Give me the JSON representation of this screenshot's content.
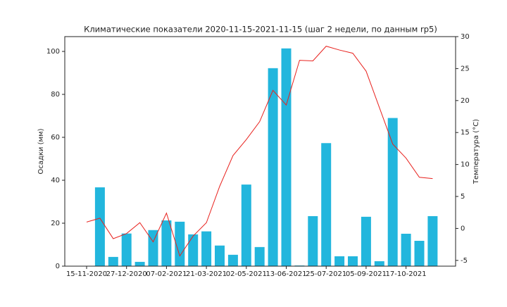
{
  "chart_data": {
    "type": "bar",
    "title": "Климатические показатели 2020-11-15-2021-11-15 (шаг 2 недели, по данным rp5)",
    "ylabel": "Осадки (мм)",
    "y2label": "Температура (°C)",
    "categories": [
      "15-11-2020",
      null,
      null,
      "27-12-2020",
      null,
      null,
      "07-02-2021",
      null,
      null,
      "21-03-2021",
      null,
      null,
      "02-05-2021",
      null,
      null,
      "13-06-2021",
      null,
      null,
      "25-07-2021",
      null,
      null,
      "05-09-2021",
      null,
      null,
      "17-10-2021",
      null,
      null
    ],
    "series": [
      {
        "type": "bar",
        "color": "#22b6dd",
        "values": [
          0,
          36.7,
          4.3,
          15.2,
          2.0,
          16.8,
          21.3,
          20.7,
          14.8,
          16.2,
          9.6,
          5.3,
          38.0,
          8.9,
          92.2,
          101.4,
          0.3,
          23.3,
          57.3,
          4.6,
          4.6,
          23.0,
          2.3,
          69.0,
          15.1,
          11.8,
          23.3
        ]
      },
      {
        "type": "line",
        "axis": "y2",
        "color": "#e8211d",
        "values": [
          1.0,
          1.6,
          -1.6,
          -0.8,
          0.9,
          -2.1,
          2.4,
          -4.3,
          -1.2,
          0.9,
          6.6,
          11.4,
          13.9,
          16.7,
          21.6,
          19.3,
          26.3,
          26.2,
          28.5,
          27.9,
          27.4,
          24.6,
          18.9,
          13.2,
          11.0,
          8.0,
          7.8
        ]
      }
    ],
    "ylim": [
      0,
      106.9
    ],
    "yticks": [
      0,
      20,
      40,
      60,
      80,
      100
    ],
    "y2lim": [
      -5.9,
      30
    ],
    "y2ticks": [
      -5,
      0,
      5,
      10,
      15,
      20,
      25,
      30
    ]
  }
}
